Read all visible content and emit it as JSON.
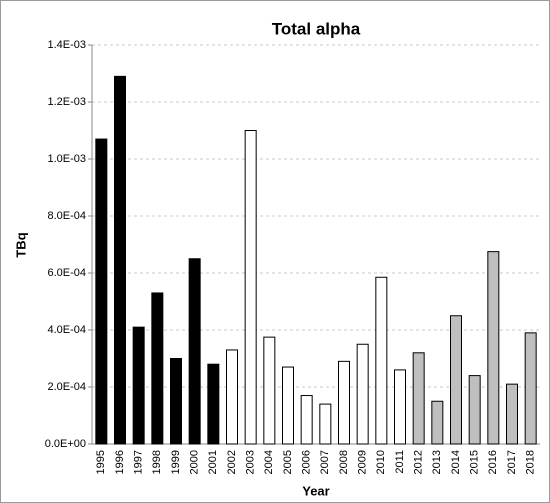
{
  "chart_data": {
    "type": "bar",
    "title": "Total alpha",
    "x_label": "Year",
    "y_label": "TBq",
    "categories": [
      "1995",
      "1996",
      "1997",
      "1998",
      "1999",
      "2000",
      "2001",
      "2002",
      "2003",
      "2004",
      "2005",
      "2006",
      "2007",
      "2008",
      "2009",
      "2010",
      "2011",
      "2012",
      "2013",
      "2014",
      "2015",
      "2016",
      "2017",
      "2018"
    ],
    "values": [
      0.00107,
      0.00129,
      0.00041,
      0.00053,
      0.0003,
      0.00065,
      0.00028,
      0.00033,
      0.0011,
      0.000375,
      0.00027,
      0.00017,
      0.00014,
      0.00029,
      0.00035,
      0.000585,
      0.00026,
      0.00032,
      0.00015,
      0.00045,
      0.00024,
      0.000675,
      0.00021,
      0.00039
    ],
    "colors": [
      "#000000",
      "#000000",
      "#000000",
      "#000000",
      "#000000",
      "#000000",
      "#000000",
      "#ffffff",
      "#ffffff",
      "#ffffff",
      "#ffffff",
      "#ffffff",
      "#ffffff",
      "#ffffff",
      "#ffffff",
      "#ffffff",
      "#ffffff",
      "#bfbfbf",
      "#bfbfbf",
      "#bfbfbf",
      "#bfbfbf",
      "#bfbfbf",
      "#bfbfbf",
      "#bfbfbf"
    ],
    "ylim": [
      0,
      0.0014
    ],
    "yticks": [
      {
        "value": 0,
        "label": "0.0E+00"
      },
      {
        "value": 0.0002,
        "label": "2.0E-04"
      },
      {
        "value": 0.0004,
        "label": "4.0E-04"
      },
      {
        "value": 0.0006,
        "label": "6.0E-04"
      },
      {
        "value": 0.0008,
        "label": "8.0E-04"
      },
      {
        "value": 0.001,
        "label": "1.0E-03"
      },
      {
        "value": 0.0012,
        "label": "1.2E-03"
      },
      {
        "value": 0.0014,
        "label": "1.4E-03"
      }
    ],
    "grid": true
  }
}
